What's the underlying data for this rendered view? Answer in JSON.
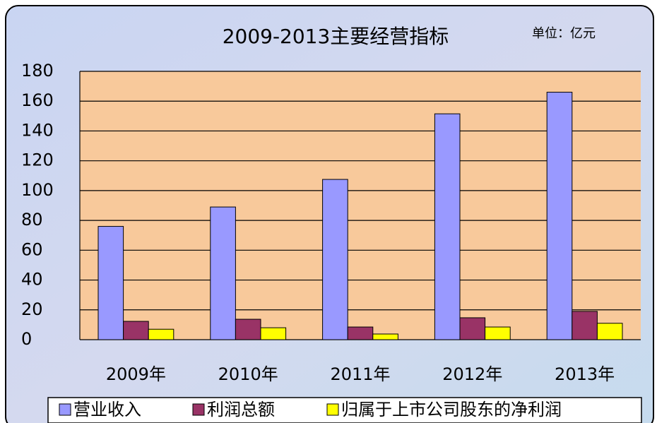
{
  "chart_data": {
    "type": "bar",
    "title": "2009-2013主要经营指标",
    "unit_label": "单位：亿元",
    "categories": [
      "2009年",
      "2010年",
      "2011年",
      "2012年",
      "2013年"
    ],
    "series": [
      {
        "name": "营业收入",
        "color": "#9999ff",
        "values": [
          76,
          89,
          107.5,
          151.5,
          166
        ]
      },
      {
        "name": "利润总额",
        "color": "#993366",
        "values": [
          12.3,
          13.7,
          8.5,
          14.7,
          19
        ]
      },
      {
        "name": "归属于上市公司股东的净利润",
        "color": "#ffff00",
        "values": [
          7,
          8,
          3.8,
          8.5,
          11
        ]
      }
    ],
    "ylim": [
      0,
      180
    ],
    "yticks": [
      0,
      20,
      40,
      60,
      80,
      100,
      120,
      140,
      160,
      180
    ],
    "grid": true,
    "legend": "bottom",
    "plot_background": "#f8c99b"
  }
}
